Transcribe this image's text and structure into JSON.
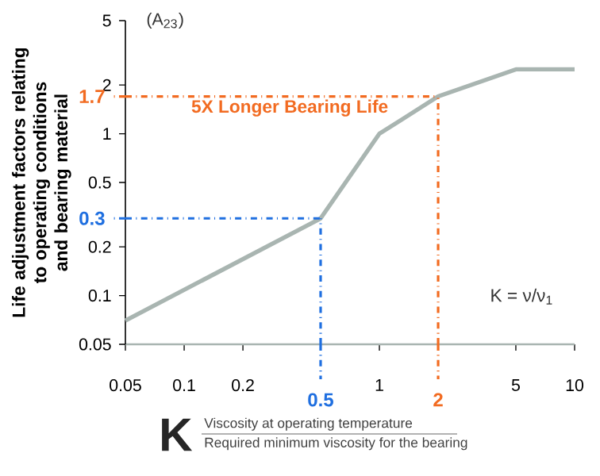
{
  "chart_data": {
    "type": "line",
    "ylabel": "Life adjustment factors relating to operating conditions and bearing material",
    "x": [
      0.05,
      0.5,
      1,
      2,
      5,
      10
    ],
    "series": [
      {
        "color": "#a9b5b1",
        "values": [
          0.07,
          0.3,
          1,
          1.7,
          2.5,
          2.5
        ]
      }
    ],
    "log": "xy",
    "xlim": [
      0.05,
      10
    ],
    "ylim": [
      0.05,
      5
    ],
    "xticks": [
      0.05,
      0.1,
      0.2,
      1,
      5,
      10
    ],
    "yticks": [
      0.05,
      0.1,
      0.2,
      0.5,
      1,
      2,
      5
    ],
    "ref_lines": [
      {
        "axis": "x",
        "value": 0.5,
        "label": "0.5",
        "color": "#1f6fe0",
        "line_style": "dashdot"
      },
      {
        "axis": "y",
        "value": 0.3,
        "label": "0.3",
        "color": "#1f6fe0",
        "line_style": "dashdot"
      },
      {
        "axis": "x",
        "value": 2,
        "label": "2",
        "color": "#f26b21",
        "line_style": "dashdot"
      },
      {
        "axis": "y",
        "value": 1.7,
        "label": "1.7",
        "color": "#f26b21",
        "line_style": "dashdot"
      }
    ],
    "annotations": [
      "(A$_{23}$)",
      "5X Longer Bearing Life",
      "K = ν/ν$_{1}$",
      "K",
      "Viscosity at operating temperature",
      "Required minimum viscosity for the bearing"
    ],
    "grid": false,
    "marker": "none"
  }
}
